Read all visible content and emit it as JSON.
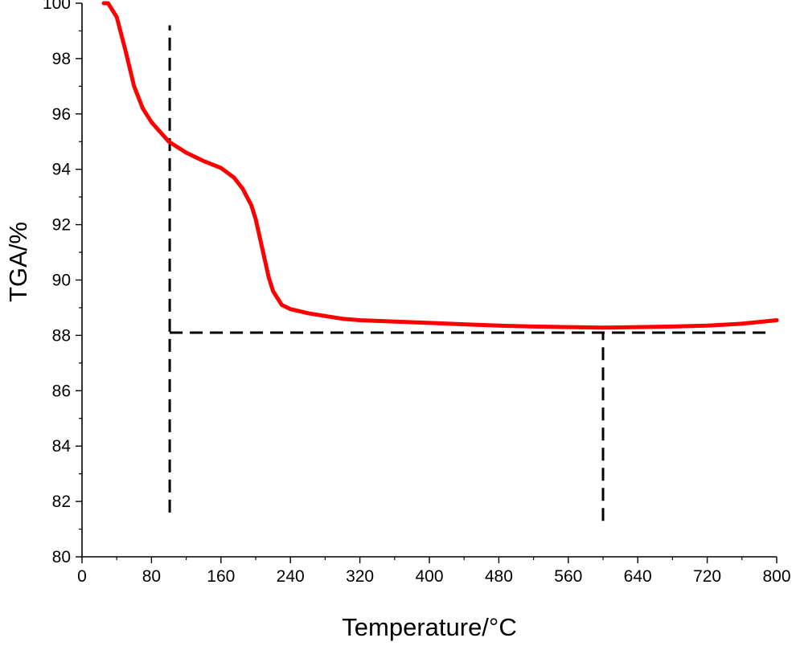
{
  "chart_data": {
    "type": "line",
    "xlabel": "Temperature/°C",
    "ylabel": "TGA/%",
    "xlim": [
      0,
      800
    ],
    "ylim": [
      80,
      100
    ],
    "x_ticks": [
      0,
      80,
      160,
      240,
      320,
      400,
      480,
      560,
      640,
      720,
      800
    ],
    "y_ticks": [
      80,
      82,
      84,
      86,
      88,
      90,
      92,
      94,
      96,
      98,
      100
    ],
    "grid": false,
    "legend": "none",
    "series": [
      {
        "color": "#ff0000",
        "x": [
          25,
          30,
          40,
          50,
          60,
          70,
          80,
          90,
          100,
          120,
          140,
          160,
          175,
          185,
          195,
          200,
          205,
          210,
          215,
          220,
          230,
          240,
          260,
          280,
          300,
          320,
          360,
          400,
          440,
          480,
          520,
          560,
          600,
          640,
          680,
          720,
          760,
          800
        ],
        "y": [
          100.0,
          100.0,
          99.5,
          98.3,
          97.0,
          96.2,
          95.7,
          95.35,
          95.0,
          94.6,
          94.3,
          94.05,
          93.7,
          93.3,
          92.7,
          92.2,
          91.5,
          90.8,
          90.1,
          89.6,
          89.1,
          88.95,
          88.8,
          88.7,
          88.6,
          88.55,
          88.5,
          88.45,
          88.4,
          88.35,
          88.32,
          88.3,
          88.28,
          88.3,
          88.32,
          88.35,
          88.42,
          88.55
        ]
      }
    ],
    "reference_lines": [
      {
        "style": "dashed",
        "color": "#000000",
        "orientation": "vertical",
        "x": 101,
        "y_from": 81.6,
        "y_to": 99.2
      },
      {
        "style": "dashed",
        "color": "#000000",
        "orientation": "horizontal",
        "y": 88.1,
        "x_from": 101,
        "x_to": 791
      },
      {
        "style": "dashed",
        "color": "#000000",
        "orientation": "vertical",
        "x": 600,
        "y_from": 81.3,
        "y_to": 88.1
      }
    ]
  }
}
